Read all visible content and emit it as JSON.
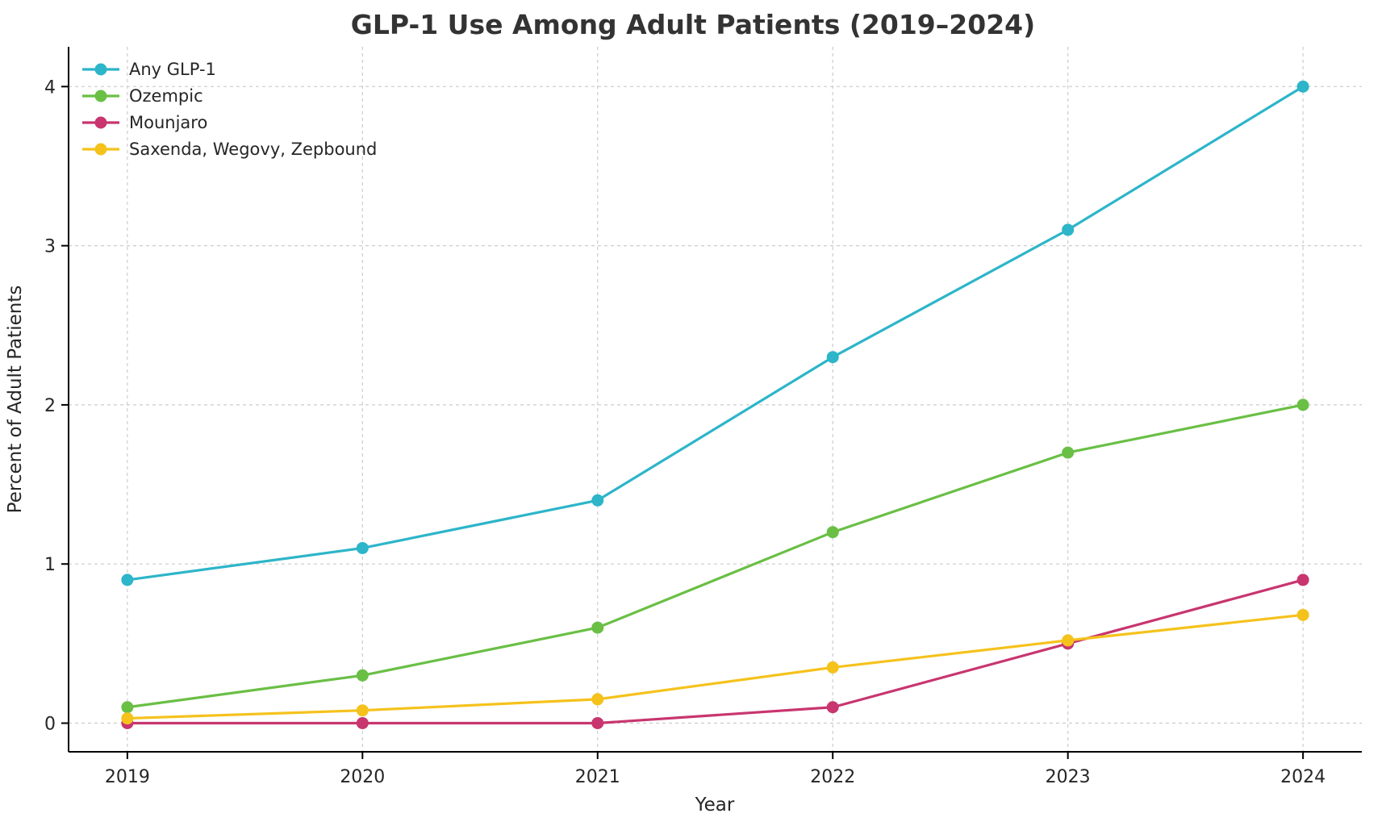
{
  "chart_data": {
    "type": "line",
    "title": "GLP-1 Use Among Adult Patients (2019–2024)",
    "xlabel": "Year",
    "ylabel": "Percent of Adult Patients",
    "x": [
      2019,
      2020,
      2021,
      2022,
      2023,
      2024
    ],
    "series": [
      {
        "name": "Any GLP-1",
        "color": "#2db5c9",
        "values": [
          0.9,
          1.1,
          1.4,
          2.3,
          3.1,
          4.0
        ]
      },
      {
        "name": "Ozempic",
        "color": "#6abf45",
        "values": [
          0.1,
          0.3,
          0.6,
          1.2,
          1.7,
          2.0
        ]
      },
      {
        "name": "Mounjaro",
        "color": "#c8356f",
        "values": [
          0.0,
          0.0,
          0.0,
          0.1,
          0.5,
          0.9
        ]
      },
      {
        "name": "Saxenda, Wegovy, Zepbound",
        "color": "#f5c21c",
        "values": [
          0.03,
          0.08,
          0.15,
          0.35,
          0.52,
          0.68
        ]
      }
    ],
    "yticks": [
      0,
      1,
      2,
      3,
      4
    ],
    "ylim": [
      -0.18,
      4.25
    ],
    "x_pad": 0.25,
    "grid": {
      "visible": true,
      "style": "dashed",
      "color": "#cccccc"
    },
    "legend": {
      "position": "upper left",
      "frame": false
    },
    "axis_color": "#000000",
    "text_color": "#262626"
  }
}
